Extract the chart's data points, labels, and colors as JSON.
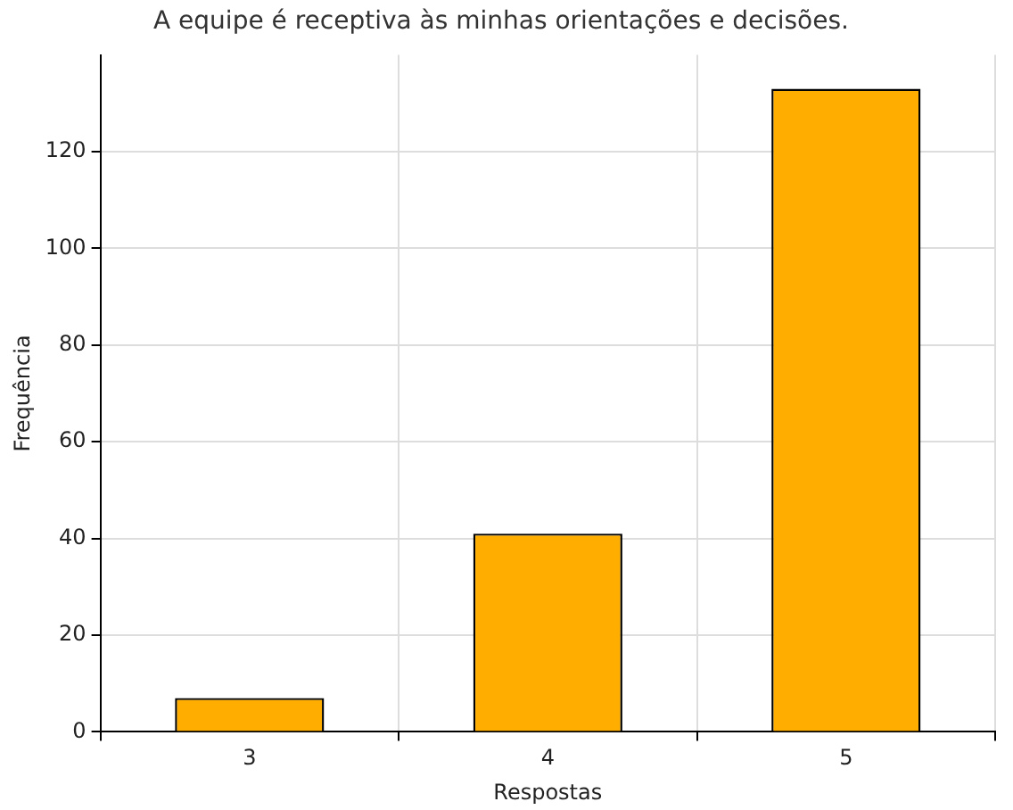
{
  "chart_data": {
    "type": "bar",
    "title": "A equipe é receptiva às minhas orientações e decisões.",
    "xlabel": "Respostas",
    "ylabel": "Frequência",
    "categories": [
      "3",
      "4",
      "5"
    ],
    "values": [
      7,
      41,
      133
    ],
    "color": "#ffae00",
    "ylim": [
      0,
      140
    ],
    "yticks": [
      0,
      20,
      40,
      60,
      80,
      100,
      120
    ],
    "grid": true
  }
}
